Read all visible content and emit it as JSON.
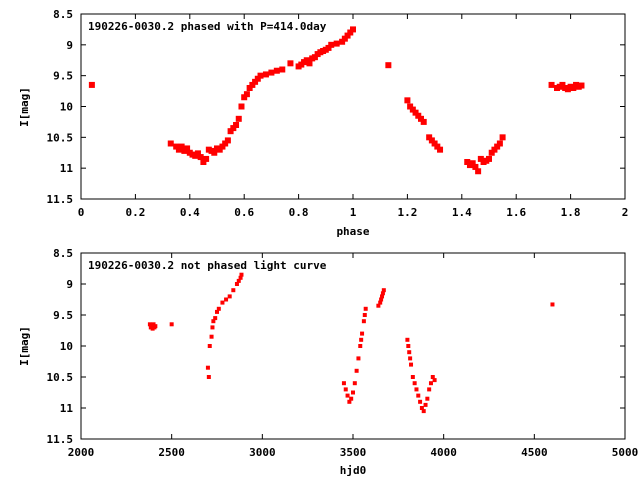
{
  "chart_data": [
    {
      "type": "scatter",
      "title": "190226-0030.2 phased with P=414.0day",
      "xlabel": "phase",
      "ylabel": "I[mag]",
      "xlim": [
        0,
        2
      ],
      "ylim": [
        11.5,
        8.5
      ],
      "y_inverted": true,
      "xticks": [
        "0",
        "0.2",
        "0.4",
        "0.6",
        "0.8",
        "1",
        "1.2",
        "1.4",
        "1.6",
        "1.8",
        "2"
      ],
      "yticks": [
        "8.5",
        "9",
        "9.5",
        "10",
        "10.5",
        "11",
        "11.5"
      ],
      "grid": false,
      "marker_color": "#ff0000",
      "x": [
        0.04,
        0.33,
        0.35,
        0.36,
        0.37,
        0.38,
        0.39,
        0.4,
        0.41,
        0.42,
        0.43,
        0.44,
        0.45,
        0.46,
        0.47,
        0.48,
        0.49,
        0.5,
        0.51,
        0.52,
        0.53,
        0.54,
        0.55,
        0.56,
        0.57,
        0.58,
        0.59,
        0.6,
        0.61,
        0.62,
        0.63,
        0.64,
        0.65,
        0.66,
        0.68,
        0.7,
        0.72,
        0.74,
        0.77,
        0.8,
        0.81,
        0.82,
        0.83,
        0.84,
        0.85,
        0.86,
        0.87,
        0.88,
        0.89,
        0.9,
        0.91,
        0.92,
        0.94,
        0.96,
        0.97,
        0.98,
        0.99,
        1.0,
        1.13,
        1.2,
        1.21,
        1.22,
        1.23,
        1.24,
        1.25,
        1.26,
        1.28,
        1.29,
        1.3,
        1.31,
        1.32,
        1.42,
        1.43,
        1.44,
        1.45,
        1.46,
        1.47,
        1.48,
        1.49,
        1.5,
        1.51,
        1.52,
        1.53,
        1.54,
        1.55,
        1.73,
        1.75,
        1.76,
        1.77,
        1.78,
        1.79,
        1.8,
        1.81,
        1.82,
        1.83,
        1.84
      ],
      "y": [
        9.65,
        10.6,
        10.65,
        10.7,
        10.65,
        10.72,
        10.68,
        10.75,
        10.78,
        10.8,
        10.76,
        10.82,
        10.9,
        10.85,
        10.7,
        10.72,
        10.75,
        10.68,
        10.7,
        10.65,
        10.6,
        10.55,
        10.4,
        10.35,
        10.3,
        10.2,
        10.0,
        9.85,
        9.8,
        9.7,
        9.65,
        9.6,
        9.55,
        9.5,
        9.48,
        9.45,
        9.42,
        9.4,
        9.3,
        9.35,
        9.32,
        9.28,
        9.25,
        9.3,
        9.22,
        9.2,
        9.15,
        9.12,
        9.1,
        9.08,
        9.05,
        9.0,
        8.98,
        8.95,
        8.9,
        8.85,
        8.8,
        8.75,
        9.33,
        9.9,
        10.0,
        10.05,
        10.1,
        10.15,
        10.2,
        10.25,
        10.5,
        10.55,
        10.6,
        10.65,
        10.7,
        10.9,
        10.95,
        10.92,
        10.98,
        11.05,
        10.85,
        10.9,
        10.88,
        10.85,
        10.75,
        10.7,
        10.65,
        10.6,
        10.5,
        9.65,
        9.7,
        9.68,
        9.65,
        9.7,
        9.72,
        9.68,
        9.7,
        9.65,
        9.68,
        9.66
      ]
    },
    {
      "type": "scatter",
      "title": "190226-0030.2 not phased light curve",
      "xlabel": "hjd0",
      "ylabel": "I[mag]",
      "xlim": [
        2000,
        5000
      ],
      "ylim": [
        11.5,
        8.5
      ],
      "y_inverted": true,
      "xticks": [
        "2000",
        "2500",
        "3000",
        "3500",
        "4000",
        "4500",
        "5000"
      ],
      "yticks": [
        "8.5",
        "9",
        "9.5",
        "10",
        "10.5",
        "11",
        "11.5"
      ],
      "grid": false,
      "marker_color": "#ff0000",
      "x": [
        2380,
        2385,
        2390,
        2395,
        2400,
        2405,
        2410,
        2500,
        2700,
        2705,
        2710,
        2720,
        2725,
        2730,
        2740,
        2750,
        2760,
        2780,
        2800,
        2820,
        2840,
        2860,
        2870,
        2880,
        2885,
        3450,
        3460,
        3470,
        3480,
        3490,
        3500,
        3510,
        3520,
        3530,
        3540,
        3545,
        3550,
        3560,
        3565,
        3570,
        3640,
        3650,
        3655,
        3660,
        3665,
        3670,
        3800,
        3805,
        3810,
        3815,
        3820,
        3830,
        3840,
        3850,
        3860,
        3870,
        3880,
        3890,
        3900,
        3910,
        3920,
        3930,
        3940,
        3950,
        4600
      ],
      "y": [
        9.65,
        9.7,
        9.68,
        9.72,
        9.65,
        9.7,
        9.68,
        9.65,
        10.35,
        10.5,
        10.0,
        9.85,
        9.7,
        9.6,
        9.55,
        9.45,
        9.4,
        9.3,
        9.25,
        9.2,
        9.1,
        9.0,
        8.95,
        8.9,
        8.85,
        10.6,
        10.7,
        10.8,
        10.9,
        10.85,
        10.75,
        10.6,
        10.4,
        10.2,
        10.0,
        9.9,
        9.8,
        9.6,
        9.5,
        9.4,
        9.35,
        9.3,
        9.25,
        9.2,
        9.15,
        9.1,
        9.9,
        10.0,
        10.1,
        10.2,
        10.3,
        10.5,
        10.6,
        10.7,
        10.8,
        10.9,
        11.0,
        11.05,
        10.95,
        10.85,
        10.7,
        10.6,
        10.5,
        10.55,
        9.33
      ]
    }
  ]
}
